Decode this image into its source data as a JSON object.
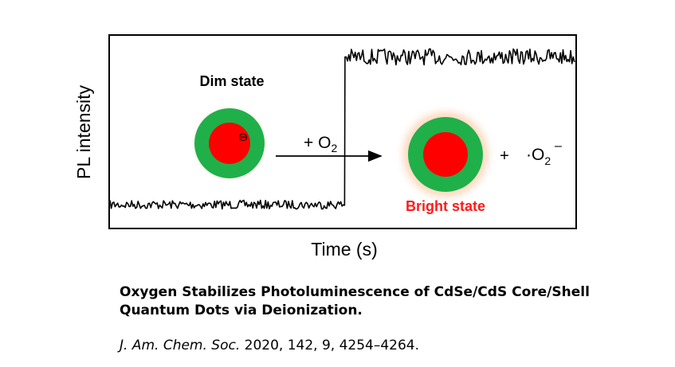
{
  "figure": {
    "y_axis_label": "PL intensity",
    "x_axis_label": "Time (s)",
    "dim_state_label": "Dim state",
    "bright_state_label": "Bright state",
    "electron_symbol": "⊖",
    "reaction_label_prefix": "+ O",
    "reaction_label_subscript": "2",
    "product_plus": "+",
    "product_prefix": "·O",
    "product_subscript": "2",
    "product_superscript": "–",
    "colors": {
      "core": "#ff0000",
      "shell": "#1fb04a",
      "glow": "#f7b98a",
      "trace": "#000000",
      "bright_text": "#ff1a1a"
    },
    "trace": {
      "dim_level": 0.12,
      "bright_level": 0.89,
      "switch_time_fraction": 0.505
    }
  },
  "caption": {
    "title": "Oxygen Stabilizes Photoluminescence of CdSe/CdS Core/Shell Quantum Dots via Deionization.",
    "journal": "J. Am. Chem. Soc.",
    "details": " 2020, 142, 9, 4254–4264."
  }
}
